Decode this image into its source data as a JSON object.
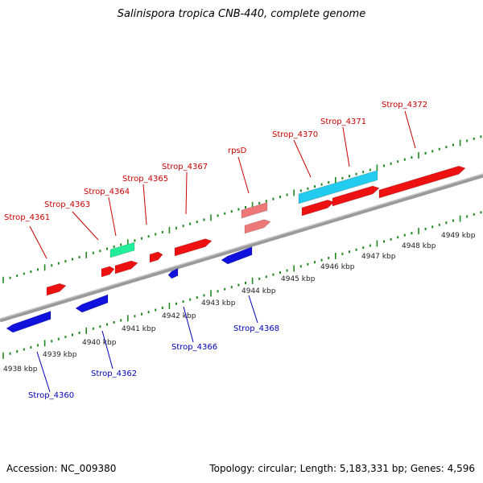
{
  "title": "Salinispora tropica CNB-440, complete genome",
  "footer": {
    "accession": "Accession: NC_009380",
    "summary": "Topology: circular; Length: 5,183,331 bp; Genes: 4,596"
  },
  "colors": {
    "forward_gene": "#ee1111",
    "reverse_gene": "#1111dd",
    "rrna_gene": "#22ccee",
    "trna_gene": "#22ee99",
    "pseudo_gene": "#ee7777",
    "forward_label": "#cc0000",
    "reverse_label": "#0000bb",
    "backbone": "#888888",
    "ruler_tick": "#228822"
  },
  "scale": {
    "kbp_labels": [
      "4938 kbp",
      "4939 kbp",
      "4940 kbp",
      "4941 kbp",
      "4942 kbp",
      "4943 kbp",
      "4944 kbp",
      "4945 kbp",
      "4946 kbp",
      "4947 kbp",
      "4948 kbp",
      "4949 kbp"
    ]
  },
  "genes": [
    {
      "label": "Strop_4360",
      "strand": "reverse",
      "kind": "cds"
    },
    {
      "label": "Strop_4361",
      "strand": "forward",
      "kind": "cds"
    },
    {
      "label": "Strop_4362",
      "strand": "reverse",
      "kind": "cds"
    },
    {
      "label": "Strop_4363",
      "strand": "forward",
      "kind": "cds"
    },
    {
      "label": "Strop_4364",
      "strand": "forward",
      "kind": "trna"
    },
    {
      "label": "Strop_4365",
      "strand": "forward",
      "kind": "cds"
    },
    {
      "label": "Strop_4366",
      "strand": "reverse",
      "kind": "cds"
    },
    {
      "label": "Strop_4367",
      "strand": "forward",
      "kind": "cds"
    },
    {
      "label": "Strop_4368",
      "strand": "reverse",
      "kind": "cds"
    },
    {
      "label": "rpsD",
      "strand": "forward",
      "kind": "pseudo"
    },
    {
      "label": "Strop_4370",
      "strand": "forward",
      "kind": "rrna"
    },
    {
      "label": "Strop_4371",
      "strand": "forward",
      "kind": "cds"
    },
    {
      "label": "Strop_4372",
      "strand": "forward",
      "kind": "cds"
    }
  ]
}
